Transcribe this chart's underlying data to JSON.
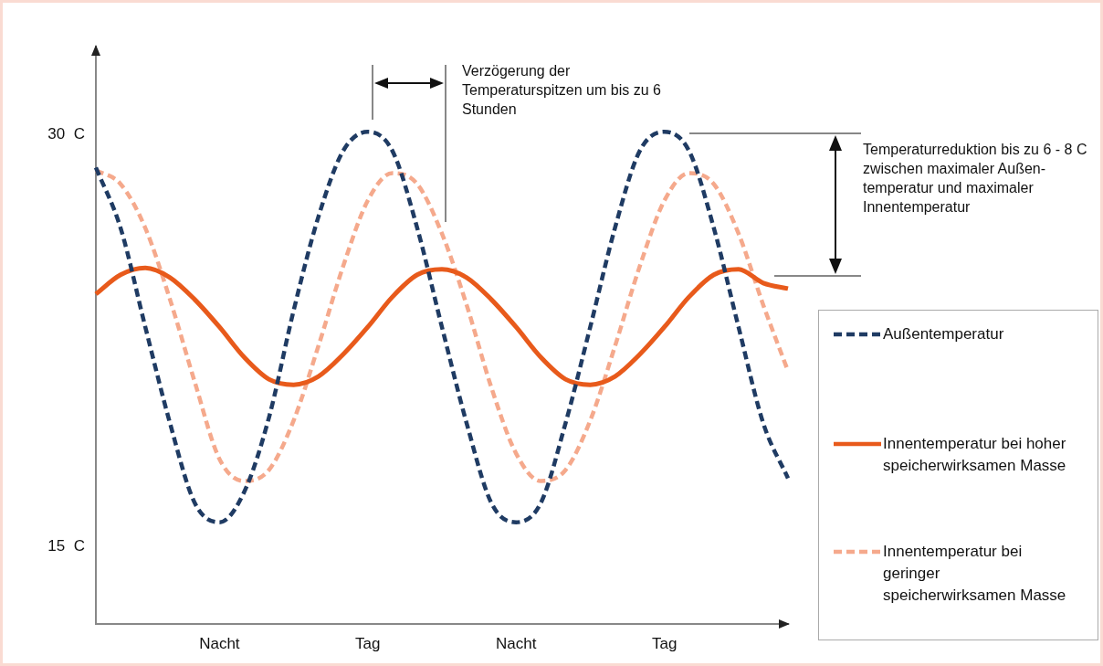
{
  "chart_data": {
    "type": "line",
    "categories": [
      null,
      null,
      null,
      null,
      null,
      "Nacht",
      null,
      null,
      null,
      null,
      null,
      "Tag",
      null,
      null,
      null,
      null,
      null,
      "Nacht",
      null,
      null,
      null,
      null,
      null,
      "Tag",
      null,
      null,
      null,
      null,
      null
    ],
    "ylim": [
      12.2,
      33.2
    ],
    "yticks": [
      {
        "value": 30,
        "label": "30  C"
      },
      {
        "value": 15,
        "label": "15  C"
      }
    ],
    "grid": false,
    "legend": "right",
    "marker": "none",
    "annotations": [
      "Verzögerung der Temperaturspitzen um bis zu 6 Stunden",
      "Temperaturreduktion bis zu 6 - 8  C zwischen maximaler Außen-temperatur und maximaler Innentemperatur"
    ],
    "series": [
      {
        "name": "Außentemperatur",
        "color": "#1f3b63",
        "line_style": "dashed",
        "values": [
          28.8,
          26.6,
          23.0,
          19.5,
          16.6,
          15.9,
          17.0,
          19.7,
          23.6,
          27.0,
          29.4,
          30.1,
          29.4,
          26.6,
          23.0,
          19.5,
          16.6,
          15.9,
          16.6,
          19.5,
          23.0,
          26.6,
          29.4,
          30.1,
          29.4,
          26.6,
          23.0,
          19.5,
          17.5
        ]
      },
      {
        "name": "Innentemperatur bei hoher speicherwirksamen Masse",
        "color": "#e85a1b",
        "line_style": "solid",
        "values": [
          24.2,
          24.9,
          25.15,
          24.8,
          24.0,
          23.0,
          21.9,
          21.1,
          20.9,
          21.2,
          22.0,
          23.0,
          24.1,
          24.9,
          25.1,
          24.8,
          24.0,
          23.0,
          21.9,
          21.1,
          20.9,
          21.2,
          22.0,
          23.0,
          24.1,
          24.9,
          25.1,
          24.6,
          24.4
        ]
      },
      {
        "name": "Innentemperatur bei geringer speicherwirksamen Masse",
        "color": "#f5a98c",
        "line_style": "dashed",
        "values": [
          28.7,
          28.2,
          26.6,
          24.0,
          21.0,
          18.2,
          17.4,
          17.8,
          19.6,
          22.3,
          25.2,
          27.6,
          28.6,
          28.2,
          26.4,
          23.8,
          20.8,
          18.4,
          17.4,
          17.8,
          19.6,
          22.3,
          25.2,
          27.6,
          28.6,
          28.2,
          26.4,
          23.8,
          21.4
        ]
      }
    ]
  }
}
